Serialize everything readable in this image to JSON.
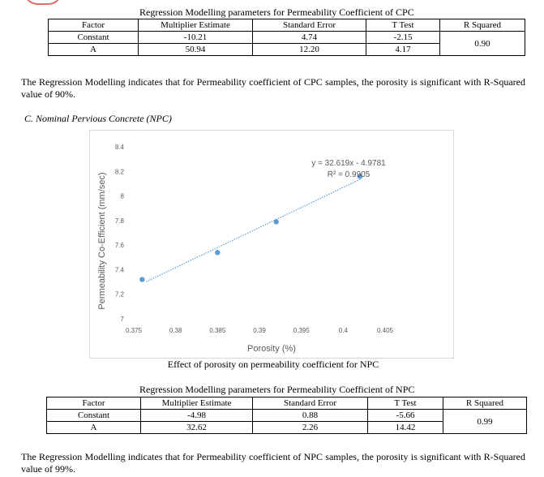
{
  "table1": {
    "caption": "Regression Modelling parameters for Permeability Coefficient of CPC",
    "headers": [
      "Factor",
      "Multiplier Estimate",
      "Standard Error",
      "T Test",
      "R Squared"
    ],
    "rows": [
      [
        "Constant",
        "-10.21",
        "4.74",
        "-2.15"
      ],
      [
        "A",
        "50.94",
        "12.20",
        "4.17"
      ]
    ],
    "r_squared": "0.90"
  },
  "paragraph1": "The Regression Modelling indicates that for Permeability coefficient of CPC samples, the porosity is significant with R-Squared value of 90%.",
  "section_heading": "C.   Nominal Pervious Concrete (NPC)",
  "chart_data": {
    "type": "scatter",
    "x": [
      0.376,
      0.385,
      0.392,
      0.402
    ],
    "y": [
      7.32,
      7.54,
      7.79,
      8.16
    ],
    "xlabel": "Porosity (%)",
    "ylabel": "Permeability Co-Efficient (mm/sec)",
    "xlim": [
      0.375,
      0.405
    ],
    "ylim": [
      7,
      8.4
    ],
    "xticks": [
      "0.375",
      "0.38",
      "0.385",
      "0.39",
      "0.395",
      "0.4",
      "0.405"
    ],
    "yticks": [
      "7",
      "7.2",
      "7.4",
      "7.6",
      "7.8",
      "8",
      "8.2",
      "8.4"
    ],
    "trendline": {
      "slope": 32.619,
      "intercept": -4.9781,
      "style": "dotted"
    },
    "annotations": [
      "y = 32.619x - 4.9781",
      "R² = 0.9905"
    ],
    "grid": false,
    "legend": "none",
    "colors": {
      "points": "#5b9bd5",
      "trendline": "#5b9bd5",
      "axis_text": "#595959"
    }
  },
  "figure_caption": "Effect of porosity on permeability coefficient for NPC",
  "table2": {
    "caption": "Regression Modelling parameters for Permeability Coefficient of NPC",
    "headers": [
      "Factor",
      "Multiplier Estimate",
      "Standard Error",
      "T Test",
      "R Squared"
    ],
    "rows": [
      [
        "Constant",
        "-4.98",
        "0.88",
        "-5.66"
      ],
      [
        "A",
        "32.62",
        "2.26",
        "14.42"
      ]
    ],
    "r_squared": "0.99"
  },
  "paragraph2": "The Regression Modelling indicates that for Permeability coefficient of NPC samples, the porosity is significant with R-Squared value of 99%."
}
